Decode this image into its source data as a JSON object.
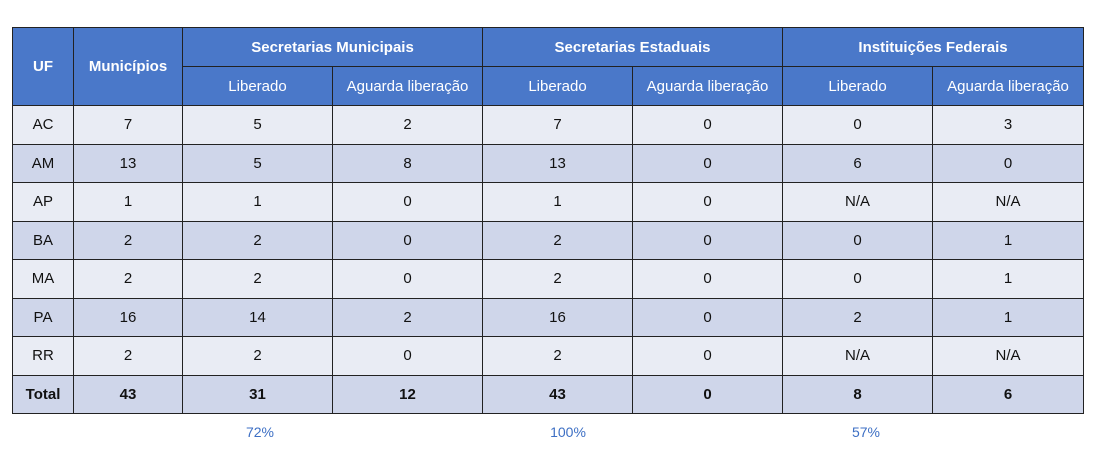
{
  "table": {
    "headers": {
      "uf": "UF",
      "municipios": "Municípios",
      "groups": [
        "Secretarias Municipais",
        "Secretarias Estaduais",
        "Instituições Federais"
      ],
      "sub": [
        "Liberado",
        "Aguarda liberação",
        "Liberado",
        "Aguarda liberação",
        "Liberado",
        "Aguarda liberação"
      ]
    },
    "rows": [
      [
        "AC",
        "7",
        "5",
        "2",
        "7",
        "0",
        "0",
        "3"
      ],
      [
        "AM",
        "13",
        "5",
        "8",
        "13",
        "0",
        "6",
        "0"
      ],
      [
        "AP",
        "1",
        "1",
        "0",
        "1",
        "0",
        "N/A",
        "N/A"
      ],
      [
        "BA",
        "2",
        "2",
        "0",
        "2",
        "0",
        "0",
        "1"
      ],
      [
        "MA",
        "2",
        "2",
        "0",
        "2",
        "0",
        "0",
        "1"
      ],
      [
        "PA",
        "16",
        "14",
        "2",
        "16",
        "0",
        "2",
        "1"
      ],
      [
        "RR",
        "2",
        "2",
        "0",
        "2",
        "0",
        "N/A",
        "N/A"
      ]
    ],
    "total": [
      "Total",
      "43",
      "31",
      "12",
      "43",
      "0",
      "8",
      "6"
    ]
  },
  "percentages": [
    "72%",
    "100%",
    "57%"
  ],
  "colors": {
    "header": "#4a78c9",
    "row_light": "#e9ecf4",
    "row_dark": "#cfd6ea",
    "percent_text": "#3d6fc4"
  }
}
